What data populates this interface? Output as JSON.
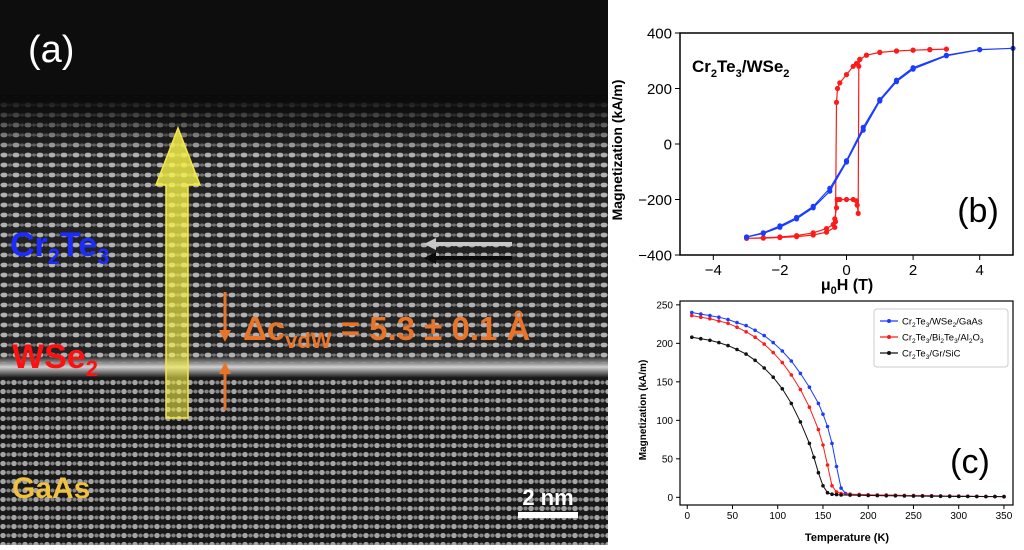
{
  "panel_a": {
    "label": "(a)",
    "layer_top": {
      "main": "Cr",
      "sub1": "2",
      "mid": "Te",
      "sub2": "3"
    },
    "layer_mid": {
      "main": "WSe",
      "sub": "2"
    },
    "layer_bottom": "GaAs",
    "gap_label": {
      "prefix": "Δc",
      "sub": "vdW",
      "value": " = 5.3 ± 0.1 Å"
    },
    "scalebar_label": "2 nm",
    "colors": {
      "cr2te3": "#1c2cff",
      "wse2": "#ff1010",
      "gaas": "#f0c040",
      "gap": "#e8742a",
      "arrow": "#f2f04a"
    }
  },
  "chart_data": [
    {
      "id": "b",
      "type": "line",
      "panel_label": "(b)",
      "title": {
        "main": "Cr",
        "s1": "2",
        "mid": "Te",
        "s2": "3",
        "mid2": "/WSe",
        "s3": "2"
      },
      "xlabel": {
        "mu": "μ",
        "sub": "0",
        "rest": "H (T)"
      },
      "ylabel": "Magnetization (kA/m)",
      "xlim": [
        -5,
        5
      ],
      "ylim": [
        -400,
        400
      ],
      "xticks": [
        -4,
        -2,
        0,
        2,
        4
      ],
      "yticks": [
        -400,
        -200,
        0,
        200,
        400
      ],
      "series": [
        {
          "color": "#ff1a1a",
          "x": [
            -3.0,
            -2.5,
            -2.0,
            -1.5,
            -1.0,
            -0.6,
            -0.4,
            -0.35,
            -0.3,
            -0.28,
            -0.2,
            0.0,
            0.2,
            0.3,
            0.32,
            0.35,
            0.37,
            0.4,
            0.6,
            1.0,
            1.5,
            2.0,
            2.5,
            3.0,
            2.5,
            2.0,
            1.5,
            1.0,
            0.6,
            0.4,
            0.3,
            0.2,
            0.0,
            -0.2,
            -0.27,
            -0.3,
            -0.33,
            -0.35,
            -0.6,
            -1.0,
            -1.5,
            -2.0,
            -2.5,
            -3.0
          ],
          "y": [
            -340,
            -338,
            -335,
            -330,
            -320,
            -305,
            -290,
            -270,
            -230,
            -200,
            -200,
            -200,
            -200,
            -205,
            -220,
            -250,
            280,
            305,
            320,
            330,
            335,
            338,
            340,
            342,
            340,
            338,
            335,
            330,
            320,
            305,
            290,
            280,
            250,
            220,
            200,
            150,
            -280,
            -300,
            -318,
            -328,
            -334,
            -337,
            -339,
            -340
          ]
        },
        {
          "color": "#1a3cff",
          "x": [
            -3.0,
            -2.5,
            -2.0,
            -1.5,
            -1.0,
            -0.5,
            0.0,
            0.5,
            1.0,
            1.5,
            2.0,
            3.0,
            4.0,
            5.0,
            4.0,
            3.0,
            2.0,
            1.5,
            1.0,
            0.5,
            0.0,
            -0.5,
            -1.0,
            -1.5,
            -2.0,
            -2.5,
            -3.0
          ],
          "y": [
            -335,
            -320,
            -295,
            -265,
            -225,
            -160,
            -60,
            60,
            160,
            230,
            275,
            320,
            340,
            345,
            340,
            318,
            270,
            225,
            155,
            50,
            -65,
            -170,
            -230,
            -270,
            -300,
            -322,
            -335
          ]
        }
      ]
    },
    {
      "id": "c",
      "type": "line",
      "panel_label": "(c)",
      "xlabel": "Temperature (K)",
      "ylabel": "Magnetization (kA/m)",
      "xlim": [
        -8,
        360
      ],
      "ylim": [
        -10,
        255
      ],
      "xticks": [
        0,
        50,
        100,
        150,
        200,
        250,
        300,
        350
      ],
      "yticks": [
        0,
        50,
        100,
        150,
        200,
        250
      ],
      "legend_position": "top-right",
      "series": [
        {
          "name": "Cr2Te3/WSe2/GaAs",
          "legend": [
            [
              "Cr",
              ""
            ],
            [
              "2",
              "sub"
            ],
            [
              "Te",
              ""
            ],
            [
              "3",
              "sub"
            ],
            [
              "/WSe",
              ""
            ],
            [
              "2",
              "sub"
            ],
            [
              "/GaAs",
              ""
            ]
          ],
          "color": "#1a3cff",
          "x": [
            5,
            15,
            25,
            35,
            45,
            55,
            65,
            75,
            85,
            95,
            105,
            115,
            125,
            135,
            145,
            150,
            155,
            160,
            165,
            170,
            175,
            180,
            190,
            200,
            210,
            220,
            230,
            240,
            250,
            260,
            270,
            280,
            290,
            300,
            310,
            320,
            330,
            340,
            350
          ],
          "y": [
            240,
            238,
            236,
            234,
            231,
            227,
            223,
            217,
            210,
            201,
            190,
            177,
            161,
            143,
            122,
            108,
            92,
            70,
            40,
            12,
            5,
            4,
            3.5,
            3,
            3,
            2.8,
            2.6,
            2.4,
            2.2,
            2,
            2,
            1.8,
            1.6,
            1.5,
            1.4,
            1.2,
            1.1,
            1,
            1
          ]
        },
        {
          "name": "Cr2Te3/Bi2Te3/Al2O3",
          "legend": [
            [
              "Cr",
              ""
            ],
            [
              "2",
              "sub"
            ],
            [
              "Te",
              ""
            ],
            [
              "3",
              "sub"
            ],
            [
              "/Bi",
              ""
            ],
            [
              "2",
              "sub"
            ],
            [
              "Te",
              ""
            ],
            [
              "3",
              "sub"
            ],
            [
              "/Al",
              ""
            ],
            [
              "2",
              "sub"
            ],
            [
              "O",
              ""
            ],
            [
              "3",
              "sub"
            ]
          ],
          "color": "#ff1a1a",
          "x": [
            5,
            15,
            25,
            35,
            45,
            55,
            65,
            75,
            85,
            95,
            105,
            115,
            125,
            135,
            145,
            150,
            155,
            160,
            165,
            170,
            180,
            190,
            200,
            210,
            220,
            230,
            240,
            250,
            260,
            270,
            280,
            290,
            300,
            310,
            320,
            330,
            340,
            350
          ],
          "y": [
            236,
            234,
            232,
            229,
            226,
            221,
            215,
            208,
            199,
            188,
            175,
            159,
            140,
            117,
            88,
            68,
            42,
            15,
            7,
            5,
            4,
            3.6,
            3.2,
            3,
            2.8,
            2.6,
            2.4,
            2.2,
            2,
            1.9,
            1.7,
            1.6,
            1.4,
            1.3,
            1.2,
            1.1,
            1,
            1
          ]
        },
        {
          "name": "Cr2Te3/Gr/SiC",
          "legend": [
            [
              "Cr",
              ""
            ],
            [
              "2",
              "sub"
            ],
            [
              "Te",
              ""
            ],
            [
              "3",
              "sub"
            ],
            [
              "/Gr/SiC",
              ""
            ]
          ],
          "color": "#111111",
          "x": [
            5,
            15,
            25,
            35,
            45,
            55,
            65,
            75,
            85,
            95,
            105,
            115,
            125,
            135,
            140,
            145,
            150,
            155,
            160,
            165,
            170,
            180,
            190,
            200,
            210,
            220,
            230,
            240,
            250,
            260,
            270,
            280,
            290,
            300,
            310,
            320,
            330,
            340,
            350
          ],
          "y": [
            208,
            206,
            204,
            201,
            197,
            192,
            186,
            178,
            168,
            156,
            141,
            122,
            98,
            70,
            52,
            32,
            15,
            6,
            4,
            3.5,
            3,
            2.8,
            2.6,
            2.4,
            2.2,
            2,
            1.9,
            1.8,
            1.6,
            1.5,
            1.4,
            1.3,
            1.2,
            1.1,
            1,
            1,
            0.9,
            0.9,
            0.8
          ]
        }
      ]
    }
  ]
}
